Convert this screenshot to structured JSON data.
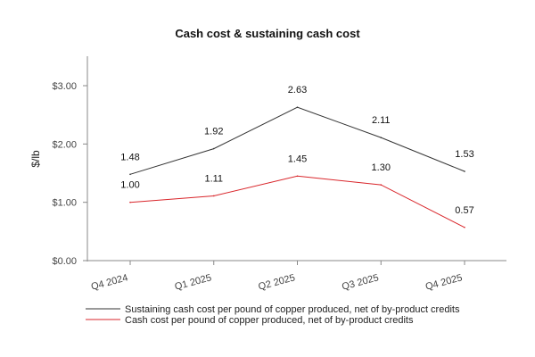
{
  "chart_data": {
    "type": "line",
    "title": "Cash cost & sustaining cash cost",
    "xlabel": "",
    "ylabel": "$/lb",
    "categories": [
      "Q4 2024",
      "Q1 2025",
      "Q2 2025",
      "Q3 2025",
      "Q4 2025"
    ],
    "ylim": [
      0,
      3.5
    ],
    "yticks": [
      0,
      1,
      2,
      3
    ],
    "ytick_labels": [
      "$0.00",
      "$1.00",
      "$2.00",
      "$3.00"
    ],
    "grid": false,
    "legend_position": "bottom",
    "series": [
      {
        "name": "Sustaining cash cost per pound of copper produced, net of by-product credits",
        "color": "#333333",
        "values": [
          1.48,
          1.92,
          2.63,
          2.11,
          1.53
        ],
        "labels": [
          "1.48",
          "1.92",
          "2.63",
          "2.11",
          "1.53"
        ]
      },
      {
        "name": "Cash cost per pound of copper produced, net of by-product credits",
        "color": "#d9262b",
        "values": [
          1.0,
          1.11,
          1.45,
          1.3,
          0.57
        ],
        "labels": [
          "1.00",
          "1.11",
          "1.45",
          "1.30",
          "0.57"
        ]
      }
    ]
  }
}
